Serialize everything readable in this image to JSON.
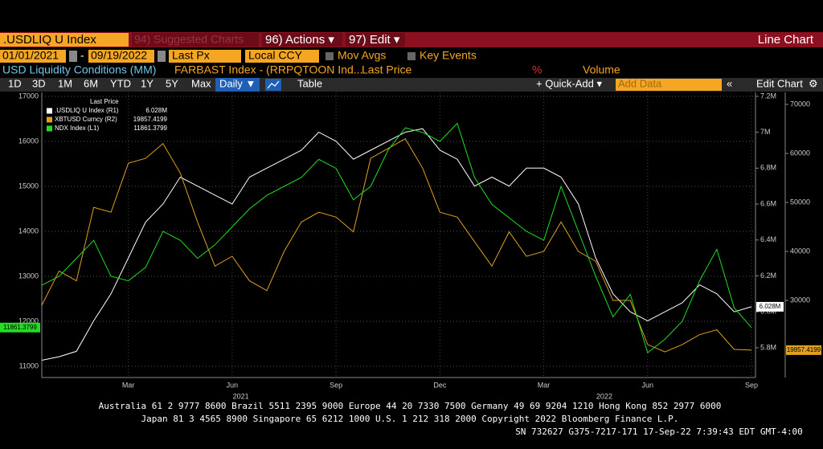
{
  "ui": {
    "ticker": ".USDLIQ U Index",
    "menu": [
      "94) Suggested Charts",
      "96) Actions ▾",
      "97) Edit ▾"
    ],
    "view": "Line Chart",
    "start_date": "01/01/2021",
    "date_sep": "-",
    "end_date": "09/19/2022",
    "price_field": "Last Px",
    "currency": "Local CCY",
    "options": [
      "Mov Avgs",
      "Key Events"
    ],
    "description": "USD Liquidity Conditions (MM)",
    "formula": "FARBAST Index - (RRPQTOON Ind...",
    "field": "Last Price",
    "pct": "%",
    "volume": "Volume",
    "periods": [
      "1D",
      "3D",
      "1M",
      "6M",
      "YTD",
      "1Y",
      "5Y",
      "Max"
    ],
    "frequency": "Daily ▼",
    "table": "Table",
    "quick_add": "+ Quick-Add ▾",
    "add_data": "Add Data",
    "edit_chart": "Edit Chart",
    "footer": [
      "Australia 61 2 9777 8600 Brazil 5511 2395 9000 Europe 44 20 7330 7500 Germany 49 69 9204 1210 Hong Kong 852 2977 6000",
      "Japan 81 3 4565 8900       Singapore 65 6212 1000       U.S. 1 212 318 2000       Copyright 2022 Bloomberg Finance L.P.",
      "SN 732627 G375-7217-171 17-Sep-22  7:39:43 EDT  GMT-4:00"
    ]
  },
  "chart_data": {
    "type": "line",
    "legend_title": "Last Price",
    "categories": [
      null,
      null,
      null,
      null,
      null,
      "Mar",
      null,
      null,
      null,
      null,
      null,
      "Jun",
      null,
      null,
      null,
      null,
      null,
      "Sep",
      null,
      null,
      null,
      null,
      null,
      "Dec",
      null,
      null,
      null,
      null,
      null,
      "Mar",
      null,
      null,
      null,
      null,
      null,
      "Jun",
      null,
      null,
      null,
      null,
      null,
      "Sep"
    ],
    "x_years": [
      "2021",
      "2022"
    ],
    "ylim": [
      10750,
      17090
    ],
    "yticks": [
      11000,
      12000,
      13000,
      14000,
      15000,
      16000,
      17000
    ],
    "y2lim": [
      5.634,
      7.222
    ],
    "y2ticks": [
      {
        "value": 5.8,
        "label": "5.8M"
      },
      {
        "value": 6.0,
        "label": "6.0M"
      },
      {
        "value": 6.2,
        "label": "6.2M"
      },
      {
        "value": 6.4,
        "label": "6.4M"
      },
      {
        "value": 6.6,
        "label": "6.6M"
      },
      {
        "value": 6.8,
        "label": "6.8M"
      },
      {
        "value": 7.0,
        "label": "7M"
      },
      {
        "value": 7.2,
        "label": "7.2M"
      }
    ],
    "y3lim": [
      14270,
      72460
    ],
    "y3ticks": [
      30000,
      40000,
      50000,
      60000,
      70000
    ],
    "grid": true,
    "series": [
      {
        "name": ".USDLIQ U Index  (R1)",
        "color": "#ffffff",
        "axis": "y2",
        "values": [
          5.73,
          5.75,
          5.78,
          5.95,
          6.1,
          6.3,
          6.5,
          6.6,
          6.75,
          6.7,
          6.65,
          6.6,
          6.75,
          6.8,
          6.85,
          6.9,
          7.0,
          6.95,
          6.85,
          6.9,
          6.95,
          7.0,
          7.02,
          6.9,
          6.85,
          6.7,
          6.75,
          6.7,
          6.8,
          6.8,
          6.75,
          6.6,
          6.3,
          6.1,
          6.0,
          5.95,
          6.0,
          6.05,
          6.15,
          6.1,
          6.0,
          6.028
        ],
        "value_labels": [
          null,
          null,
          null,
          null,
          null,
          null,
          null,
          null,
          null,
          null,
          null,
          null,
          null,
          null,
          null,
          null,
          null,
          null,
          null,
          null,
          null,
          null,
          null,
          null,
          null,
          null,
          null,
          null,
          null,
          null,
          null,
          null,
          null,
          null,
          null,
          null,
          null,
          null,
          null,
          null,
          null,
          "6.028M"
        ]
      },
      {
        "name": "XBTUSD Curncy  (R2)",
        "color": "#e0a020",
        "axis": "y3",
        "values": [
          29000,
          36000,
          34000,
          49000,
          48000,
          58000,
          59000,
          62000,
          56000,
          46000,
          37000,
          39000,
          34000,
          32000,
          40000,
          46000,
          48000,
          47000,
          44000,
          59000,
          61000,
          63000,
          57000,
          48000,
          47000,
          42000,
          37000,
          44000,
          39000,
          40000,
          46000,
          40000,
          38000,
          30000,
          30000,
          21000,
          19500,
          21000,
          23000,
          24000,
          20000,
          19857.4199
        ]
      },
      {
        "name": "NDX Index  (L1)",
        "color": "#22dd22",
        "axis": "y",
        "values": [
          12800,
          13000,
          13400,
          13800,
          13000,
          12900,
          13200,
          14000,
          13800,
          13400,
          13700,
          14100,
          14500,
          14800,
          15000,
          15200,
          15600,
          15400,
          14700,
          15000,
          15800,
          16300,
          16200,
          16000,
          16400,
          15200,
          14600,
          14300,
          14000,
          13800,
          15000,
          14000,
          13000,
          12100,
          12600,
          11300,
          11600,
          12000,
          12900,
          13600,
          12300,
          11861.3799
        ]
      }
    ]
  }
}
